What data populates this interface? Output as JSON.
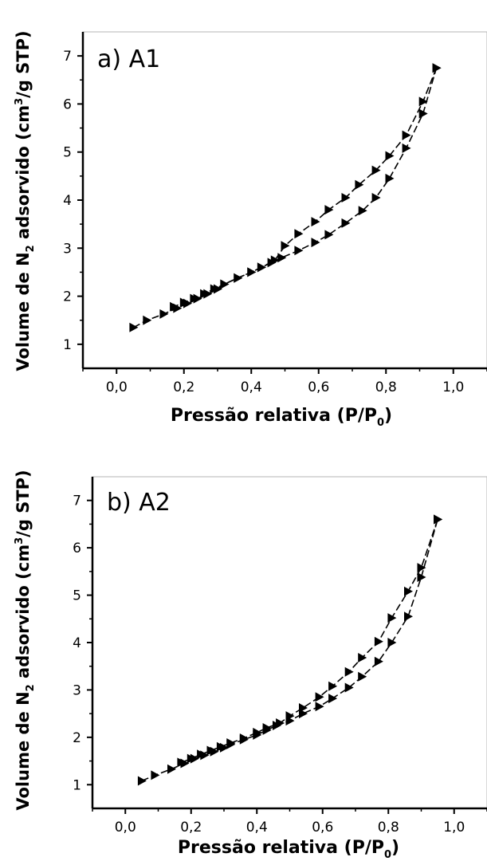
{
  "chart_data": [
    {
      "type": "line",
      "panel_label": "a) A1",
      "xlabel_main": "Pressão relativa (P/P",
      "xlabel_sub": "0",
      "xlabel_end": ")",
      "ylabel_start": "Volume de N",
      "ylabel_sub": "2",
      "ylabel_mid": " adsorvido (cm",
      "ylabel_sup": "3",
      "ylabel_end": "/g STP)",
      "xlim": [
        -0.1,
        1.1
      ],
      "ylim": [
        0.5,
        7.5
      ],
      "xticks": [
        0.0,
        0.2,
        0.4,
        0.6,
        0.8,
        1.0
      ],
      "xtick_labels": [
        "0,0",
        "0,2",
        "0,4",
        "0,6",
        "0,8",
        "1,0"
      ],
      "yticks": [
        1,
        2,
        3,
        4,
        5,
        6,
        7
      ],
      "ytick_labels": [
        "1",
        "2",
        "3",
        "4",
        "5",
        "6",
        "7"
      ],
      "series": [
        {
          "x": [
            0.05,
            0.09,
            0.14,
            0.18,
            0.21,
            0.24,
            0.27,
            0.3,
            0.32,
            0.36,
            0.4,
            0.43,
            0.46,
            0.49,
            0.54,
            0.59,
            0.63,
            0.68,
            0.73,
            0.77,
            0.81,
            0.86,
            0.91,
            0.95
          ],
          "y": [
            1.35,
            1.5,
            1.63,
            1.75,
            1.85,
            1.95,
            2.05,
            2.15,
            2.25,
            2.38,
            2.5,
            2.6,
            2.7,
            2.8,
            2.95,
            3.12,
            3.28,
            3.52,
            3.78,
            4.05,
            4.45,
            5.08,
            5.8,
            6.75
          ]
        },
        {
          "x": [
            0.95,
            0.91,
            0.86,
            0.81,
            0.77,
            0.72,
            0.68,
            0.63,
            0.59,
            0.54,
            0.5,
            0.47,
            0.43,
            0.4,
            0.36,
            0.32,
            0.29,
            0.26,
            0.23,
            0.2,
            0.17
          ],
          "y": [
            6.75,
            6.05,
            5.35,
            4.92,
            4.62,
            4.32,
            4.05,
            3.8,
            3.55,
            3.3,
            3.05,
            2.75,
            2.6,
            2.5,
            2.38,
            2.25,
            2.15,
            2.05,
            1.95,
            1.87,
            1.78
          ]
        }
      ]
    },
    {
      "type": "line",
      "panel_label": "b) A2",
      "xlabel_main": "Pressão relativa (P/P",
      "xlabel_sub": "0",
      "xlabel_end": ")",
      "ylabel_start": "Volume de N",
      "ylabel_sub": "2",
      "ylabel_mid": " adsorvido (cm",
      "ylabel_sup": "3",
      "ylabel_end": "/g STP)",
      "xlim": [
        -0.1,
        1.1
      ],
      "ylim": [
        0.5,
        7.5
      ],
      "xticks": [
        0.0,
        0.2,
        0.4,
        0.6,
        0.8,
        1.0
      ],
      "xtick_labels": [
        "0,0",
        "0,2",
        "0,4",
        "0,6",
        "0,8",
        "1,0"
      ],
      "yticks": [
        1,
        2,
        3,
        4,
        5,
        6,
        7
      ],
      "ytick_labels": [
        "1",
        "2",
        "3",
        "4",
        "5",
        "6",
        "7"
      ],
      "series": [
        {
          "x": [
            0.05,
            0.09,
            0.14,
            0.18,
            0.21,
            0.24,
            0.27,
            0.3,
            0.32,
            0.36,
            0.4,
            0.43,
            0.46,
            0.5,
            0.54,
            0.59,
            0.63,
            0.68,
            0.72,
            0.77,
            0.81,
            0.86,
            0.9,
            0.95
          ],
          "y": [
            1.08,
            1.2,
            1.33,
            1.45,
            1.55,
            1.62,
            1.7,
            1.78,
            1.85,
            1.95,
            2.05,
            2.15,
            2.25,
            2.35,
            2.5,
            2.65,
            2.82,
            3.05,
            3.28,
            3.6,
            4.0,
            4.55,
            5.38,
            6.6
          ]
        },
        {
          "x": [
            0.95,
            0.9,
            0.86,
            0.81,
            0.77,
            0.72,
            0.68,
            0.63,
            0.59,
            0.54,
            0.5,
            0.47,
            0.43,
            0.4,
            0.36,
            0.32,
            0.29,
            0.26,
            0.23,
            0.2,
            0.17
          ],
          "y": [
            6.6,
            5.58,
            5.08,
            4.52,
            4.02,
            3.68,
            3.38,
            3.08,
            2.85,
            2.62,
            2.45,
            2.3,
            2.2,
            2.1,
            1.98,
            1.88,
            1.8,
            1.72,
            1.64,
            1.55,
            1.47
          ]
        }
      ]
    }
  ]
}
